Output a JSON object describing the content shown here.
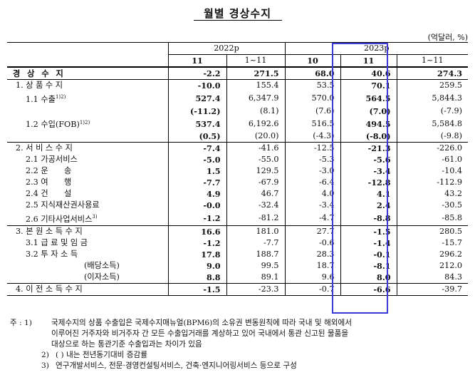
{
  "title": "월별 경상수지",
  "unit": "(억달러, %)",
  "header": {
    "year_2022": "2022p",
    "year_2023": "2023p",
    "cols": [
      "11",
      "1~11",
      "10",
      "11",
      "1~11"
    ]
  },
  "rows": [
    {
      "label": "경 상 수 지",
      "cells": [
        "-2.2",
        "271.5",
        "68.0",
        "40.6",
        "274.3"
      ],
      "bold": true,
      "sec": false
    },
    {
      "label": "1. 상 품 수 지",
      "cells": [
        "-10.0",
        "155.4",
        "53.5",
        "70.1",
        "259.5"
      ],
      "bold": false,
      "sec": true
    },
    {
      "label": "1.1 수출",
      "sup": "1)2)",
      "cells": [
        "527.4",
        "6,347.9",
        "570.0",
        "564.5",
        "5,844.3"
      ],
      "bold": false,
      "sec": false
    },
    {
      "label": "",
      "cells": [
        "(-11.2)",
        "(8.1)",
        "(7.6)",
        "(7.0)",
        "(-7.9)"
      ],
      "bold": false,
      "sec": false
    },
    {
      "label": "1.2 수입(FOB)",
      "sup": "1)2)",
      "cells": [
        "537.4",
        "6,192.6",
        "516.5",
        "494.5",
        "5,584.8"
      ],
      "bold": false,
      "sec": false
    },
    {
      "label": "",
      "cells": [
        "(0.5)",
        "(20.0)",
        "(-4.3)",
        "(-8.0)",
        "(-9.8)"
      ],
      "bold": false,
      "sec": false
    },
    {
      "label": "2. 서 비 스 수 지",
      "cells": [
        "-7.4",
        "-41.6",
        "-12.5",
        "-21.3",
        "-226.0"
      ],
      "bold": false,
      "sec": true
    },
    {
      "label": "2.1 가공서비스",
      "cells": [
        "-5.0",
        "-55.0",
        "-5.3",
        "-5.6",
        "-61.0"
      ],
      "bold": false,
      "sec": false
    },
    {
      "label": "2.2 운　　송",
      "cells": [
        "1.5",
        "129.5",
        "-3.0",
        "-3.4",
        "-10.4"
      ],
      "bold": false,
      "sec": false
    },
    {
      "label": "2.3 여　　행",
      "cells": [
        "-7.7",
        "-67.9",
        "-6.4",
        "-12.8",
        "-112.9"
      ],
      "bold": false,
      "sec": false
    },
    {
      "label": "2.4 건　　설",
      "cells": [
        "4.9",
        "46.7",
        "4.0",
        "4.1",
        "43.2"
      ],
      "bold": false,
      "sec": false
    },
    {
      "label": "2.5 지식재산권사용료",
      "cells": [
        "-0.0",
        "-32.4",
        "-3.4",
        "2.4",
        "-30.5"
      ],
      "bold": false,
      "sec": false
    },
    {
      "label": "2.6 기타사업서비스",
      "sup": "3)",
      "cells": [
        "-1.2",
        "-81.2",
        "-4.7",
        "-8.8",
        "-85.8"
      ],
      "bold": false,
      "sec": false
    },
    {
      "label": "3. 본 원 소 득 수 지",
      "cells": [
        "16.6",
        "181.0",
        "27.7",
        "-1.5",
        "280.5"
      ],
      "bold": false,
      "sec": true
    },
    {
      "label": "3.1 급 료 및 임 금",
      "cells": [
        "-1.2",
        "-7.7",
        "-0.6",
        "-1.4",
        "-15.7"
      ],
      "bold": false,
      "sec": false
    },
    {
      "label": "3.2 투 자 소 득",
      "cells": [
        "17.8",
        "188.7",
        "28.3",
        "-0.1",
        "296.2"
      ],
      "bold": false,
      "sec": false
    },
    {
      "label": "(배당소득)",
      "cells": [
        "9.0",
        "99.5",
        "18.7",
        "-8.1",
        "212.0"
      ],
      "bold": false,
      "sec": false,
      "indent": true
    },
    {
      "label": "(이자소득)",
      "cells": [
        "8.8",
        "89.1",
        "9.6",
        "8.0",
        "84.3"
      ],
      "bold": false,
      "sec": false,
      "indent": true
    },
    {
      "label": "4. 이 전 소 득 수 지",
      "cells": [
        "-1.5",
        "-23.3",
        "-0.7",
        "-6.6",
        "-39.7"
      ],
      "bold": false,
      "sec": true,
      "last": true
    }
  ],
  "notes": {
    "lead": "주 : 1)",
    "n1_line1": "국제수지의 상품 수출입은 국제수지매뉴얼(BPM6)의 소유권 변동원칙에 따라 국내 및 해외에서",
    "n1_line2": "이루어진 거주자와 비거주자 간 모든 수출입거래를 계상하고 있어 국내에서 통관 신고된 물품을",
    "n1_line3": "대상으로 하는 통관기준 수출입과는 차이가 있음",
    "n2_num": "2)",
    "n2_text": "( ) 내는 전년동기대비 증감률",
    "n3_num": "3)",
    "n3_text": "연구개발서비스, 전문·경영컨설팅서비스, 건축·엔지니어링서비스 등으로 구성"
  },
  "highlight_color": "#3a3ad6"
}
